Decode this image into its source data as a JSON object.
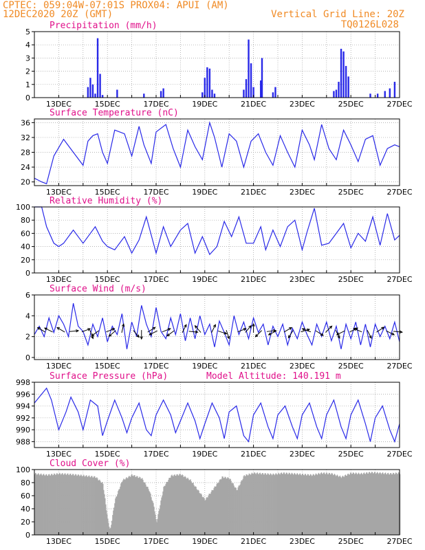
{
  "header": {
    "line1_left": "CPTEC:   059:04W-07:01S   PROX04: APUI (AM)",
    "line2_left": "12DEC2020 20Z (GMT)",
    "line1_right": "Vertical Grid Line: 20Z",
    "line2_right": "TQ0126L028"
  },
  "colors": {
    "header": "#f08a24",
    "panel_title": "#e0108a",
    "series": "#2828e8",
    "cloud": "#a6a6a6",
    "grid": "#9a9a9a"
  },
  "chart_data": [
    {
      "type": "bar",
      "title": "Precipitation (mm/h)",
      "ylim": [
        0,
        5
      ],
      "yticks": [
        0,
        1,
        2,
        3,
        4,
        5
      ],
      "xlim": [
        12.0,
        27.0
      ],
      "xticks": [
        "13DEC",
        "15DEC",
        "17DEC",
        "19DEC",
        "21DEC",
        "23DEC",
        "25DEC",
        "27DEC"
      ],
      "x": [
        14.2,
        14.3,
        14.4,
        14.5,
        14.6,
        14.7,
        14.8,
        15.4,
        16.5,
        17.2,
        17.3,
        18.9,
        19.0,
        19.1,
        19.2,
        19.3,
        19.4,
        20.6,
        20.7,
        20.8,
        20.9,
        21.0,
        21.3,
        21.35,
        21.8,
        21.9,
        24.3,
        24.4,
        24.5,
        24.6,
        24.7,
        24.8,
        24.9,
        25.8,
        26.1,
        26.4,
        26.6,
        26.8
      ],
      "values": [
        0.8,
        1.5,
        1.0,
        0.3,
        4.5,
        1.8,
        0.2,
        0.6,
        0.3,
        0.5,
        0.7,
        0.4,
        1.5,
        2.3,
        2.2,
        0.6,
        0.3,
        0.6,
        1.4,
        4.4,
        2.6,
        0.8,
        1.3,
        3.0,
        0.4,
        0.8,
        0.5,
        0.6,
        1.2,
        3.7,
        3.5,
        2.4,
        1.6,
        0.3,
        0.3,
        0.5,
        0.7,
        1.2
      ]
    },
    {
      "type": "line",
      "title": "Surface Temperature (nC)",
      "ylim": [
        19,
        37
      ],
      "yticks": [
        20,
        24,
        28,
        32,
        36
      ],
      "xlim": [
        12.0,
        27.0
      ],
      "xticks": [
        "13DEC",
        "15DEC",
        "17DEC",
        "19DEC",
        "21DEC",
        "23DEC",
        "25DEC",
        "27DEC"
      ],
      "x": [
        12.0,
        12.3,
        12.5,
        12.6,
        12.8,
        13.2,
        13.6,
        14.0,
        14.2,
        14.4,
        14.6,
        14.8,
        15.0,
        15.3,
        15.7,
        16.0,
        16.3,
        16.5,
        16.8,
        17.0,
        17.4,
        17.7,
        18.0,
        18.3,
        18.6,
        18.9,
        19.2,
        19.4,
        19.7,
        20.0,
        20.3,
        20.6,
        20.9,
        21.2,
        21.5,
        21.8,
        22.1,
        22.4,
        22.7,
        23.0,
        23.3,
        23.5,
        23.8,
        24.1,
        24.4,
        24.7,
        25.0,
        25.3,
        25.6,
        25.9,
        26.2,
        26.5,
        26.8,
        27.0
      ],
      "values": [
        21.0,
        20.0,
        19.5,
        22.0,
        27.0,
        31.5,
        28.0,
        24.5,
        31.0,
        32.5,
        33.0,
        28.0,
        25.0,
        34.0,
        33.0,
        27.0,
        35.0,
        30.0,
        25.0,
        33.5,
        35.5,
        29.0,
        24.0,
        34.0,
        29.5,
        26.0,
        36.0,
        32.0,
        24.0,
        33.0,
        31.0,
        24.0,
        31.0,
        33.0,
        28.0,
        24.5,
        32.5,
        28.0,
        24.0,
        34.0,
        30.0,
        26.0,
        35.5,
        29.0,
        26.0,
        34.0,
        30.0,
        25.5,
        31.5,
        32.5,
        24.5,
        29.0,
        30.0,
        29.5
      ]
    },
    {
      "type": "line",
      "title": "Relative Humidity (%)",
      "ylim": [
        0,
        100
      ],
      "yticks": [
        0,
        20,
        40,
        60,
        80,
        100
      ],
      "xlim": [
        12.0,
        27.0
      ],
      "xticks": [
        "13DEC",
        "15DEC",
        "17DEC",
        "19DEC",
        "21DEC",
        "23DEC",
        "25DEC",
        "27DEC"
      ],
      "x": [
        12.0,
        12.3,
        12.5,
        12.8,
        13.0,
        13.2,
        13.6,
        14.0,
        14.2,
        14.5,
        14.8,
        15.0,
        15.3,
        15.7,
        16.0,
        16.3,
        16.6,
        17.0,
        17.3,
        17.6,
        18.0,
        18.3,
        18.6,
        18.9,
        19.2,
        19.5,
        19.8,
        20.1,
        20.4,
        20.7,
        21.0,
        21.3,
        21.5,
        21.8,
        22.1,
        22.4,
        22.7,
        23.0,
        23.2,
        23.5,
        23.8,
        24.1,
        24.4,
        24.7,
        25.0,
        25.3,
        25.6,
        25.9,
        26.2,
        26.5,
        26.8,
        27.0
      ],
      "values": [
        100,
        100,
        70,
        45,
        40,
        45,
        65,
        45,
        55,
        70,
        48,
        40,
        35,
        55,
        30,
        50,
        85,
        30,
        70,
        40,
        65,
        75,
        30,
        55,
        28,
        40,
        78,
        55,
        85,
        45,
        45,
        70,
        35,
        65,
        40,
        70,
        80,
        35,
        62,
        98,
        42,
        45,
        60,
        75,
        38,
        60,
        48,
        85,
        42,
        90,
        50,
        57
      ]
    },
    {
      "type": "line",
      "title": "Surface Wind (m/s)",
      "ylim": [
        -0.2,
        6
      ],
      "yticks": [
        0,
        2,
        4,
        6
      ],
      "xlim": [
        12.0,
        27.0
      ],
      "xticks": [
        "13DEC",
        "15DEC",
        "17DEC",
        "19DEC",
        "21DEC",
        "23DEC",
        "25DEC",
        "27DEC"
      ],
      "x": [
        12.0,
        12.2,
        12.4,
        12.6,
        12.8,
        13.0,
        13.2,
        13.4,
        13.6,
        13.8,
        14.0,
        14.2,
        14.4,
        14.6,
        14.8,
        15.0,
        15.2,
        15.4,
        15.6,
        15.8,
        16.0,
        16.2,
        16.4,
        16.6,
        16.8,
        17.0,
        17.2,
        17.4,
        17.6,
        17.8,
        18.0,
        18.2,
        18.4,
        18.6,
        18.8,
        19.0,
        19.2,
        19.4,
        19.6,
        19.8,
        20.0,
        20.2,
        20.4,
        20.6,
        20.8,
        21.0,
        21.2,
        21.4,
        21.6,
        21.8,
        22.0,
        22.2,
        22.4,
        22.6,
        22.8,
        23.0,
        23.2,
        23.4,
        23.6,
        23.8,
        24.0,
        24.2,
        24.4,
        24.6,
        24.8,
        25.0,
        25.2,
        25.4,
        25.6,
        25.8,
        26.0,
        26.2,
        26.4,
        26.6,
        26.8,
        27.0
      ],
      "values": [
        2.2,
        3.0,
        2.0,
        3.8,
        2.4,
        4.0,
        3.2,
        2.0,
        5.2,
        3.0,
        2.5,
        1.2,
        3.2,
        2.0,
        3.8,
        1.5,
        3.0,
        2.2,
        4.2,
        0.8,
        3.4,
        2.0,
        5.0,
        3.2,
        2.0,
        4.8,
        2.5,
        1.8,
        3.8,
        2.2,
        4.2,
        1.6,
        3.8,
        1.8,
        4.0,
        2.2,
        3.2,
        1.0,
        3.5,
        2.4,
        1.2,
        4.0,
        2.2,
        3.4,
        1.8,
        3.8,
        2.4,
        3.2,
        1.2,
        3.0,
        2.0,
        3.2,
        1.2,
        2.8,
        1.8,
        3.4,
        2.2,
        1.2,
        3.2,
        2.0,
        3.4,
        1.6,
        3.0,
        0.8,
        3.2,
        1.8,
        3.4,
        1.2,
        3.2,
        1.0,
        3.2,
        2.0,
        3.0,
        1.8,
        3.4,
        1.5
      ]
    },
    {
      "type": "line",
      "title": "Surface Pressure (hPa)",
      "annotation": "Model Altitude: 140.191 m",
      "ylim": [
        987,
        998
      ],
      "yticks": [
        988,
        990,
        992,
        994,
        996,
        998
      ],
      "xlim": [
        12.0,
        27.0
      ],
      "xticks": [
        "13DEC",
        "15DEC",
        "17DEC",
        "19DEC",
        "21DEC",
        "23DEC",
        "25DEC",
        "27DEC"
      ],
      "x": [
        12.0,
        12.3,
        12.5,
        12.7,
        13.0,
        13.3,
        13.5,
        13.8,
        14.0,
        14.3,
        14.6,
        14.8,
        15.0,
        15.3,
        15.6,
        15.8,
        16.0,
        16.3,
        16.6,
        16.8,
        17.0,
        17.3,
        17.6,
        17.8,
        18.0,
        18.3,
        18.6,
        18.8,
        19.0,
        19.3,
        19.6,
        19.8,
        20.0,
        20.3,
        20.6,
        20.8,
        21.0,
        21.3,
        21.6,
        21.8,
        22.0,
        22.3,
        22.6,
        22.8,
        23.0,
        23.3,
        23.6,
        23.8,
        24.0,
        24.3,
        24.6,
        24.8,
        25.0,
        25.3,
        25.6,
        25.8,
        26.0,
        26.3,
        26.6,
        26.8,
        27.0
      ],
      "values": [
        994.5,
        996.0,
        997.0,
        995.0,
        990.0,
        993.0,
        995.5,
        993.0,
        990.0,
        995.0,
        994.0,
        989.0,
        991.5,
        995.0,
        992.0,
        989.5,
        992.0,
        994.5,
        990.0,
        989.0,
        992.5,
        995.0,
        992.5,
        989.5,
        991.5,
        994.5,
        991.5,
        988.5,
        991.0,
        994.5,
        992.0,
        988.5,
        993.0,
        994.0,
        989.0,
        988.0,
        992.5,
        994.5,
        990.5,
        988.5,
        992.5,
        994.0,
        990.5,
        988.5,
        992.5,
        994.5,
        990.5,
        988.5,
        992.5,
        995.0,
        990.5,
        988.5,
        992.5,
        995.0,
        991.0,
        988.0,
        992.0,
        994.0,
        990.0,
        988.0,
        991.0
      ]
    },
    {
      "type": "bar",
      "title": "Cloud Cover (%)",
      "ylim": [
        0,
        100
      ],
      "yticks": [
        0,
        20,
        40,
        60,
        80,
        100
      ],
      "xlim": [
        12.0,
        27.0
      ],
      "xticks": [
        "13DEC",
        "15DEC",
        "17DEC",
        "19DEC",
        "21DEC",
        "23DEC",
        "25DEC",
        "27DEC"
      ],
      "x": [
        12.0,
        12.5,
        13.0,
        13.5,
        14.0,
        14.5,
        14.8,
        15.0,
        15.1,
        15.3,
        15.6,
        16.0,
        16.4,
        16.7,
        16.9,
        17.0,
        17.3,
        17.6,
        18.0,
        18.4,
        18.8,
        19.0,
        19.3,
        19.7,
        20.0,
        20.3,
        20.6,
        21.0,
        21.4,
        21.8,
        22.2,
        22.6,
        23.0,
        23.4,
        23.8,
        24.2,
        24.6,
        25.0,
        25.4,
        25.8,
        26.2,
        26.6,
        27.0
      ],
      "values": [
        95,
        93,
        95,
        94,
        92,
        90,
        80,
        25,
        8,
        55,
        85,
        93,
        88,
        70,
        45,
        20,
        75,
        92,
        94,
        85,
        65,
        55,
        70,
        90,
        88,
        70,
        92,
        96,
        95,
        94,
        96,
        95,
        94,
        93,
        96,
        95,
        90,
        96,
        95,
        97,
        96,
        95,
        96
      ]
    }
  ],
  "wind_vectors": {
    "x": [
      12.4,
      12.7,
      13.2,
      13.5,
      14.0,
      14.3,
      14.6,
      15.0,
      15.3,
      15.6,
      16.1,
      16.4,
      16.7,
      17.0,
      17.3,
      17.7,
      18.1,
      18.4,
      18.8,
      19.3,
      19.6,
      19.9,
      20.4,
      20.7,
      21.0,
      21.3,
      21.6,
      21.9,
      22.3,
      22.6,
      23.0,
      23.3,
      23.6,
      24.0,
      24.4,
      24.7,
      25.0,
      25.4,
      25.7,
      26.1,
      26.5,
      26.8
    ],
    "u": [
      -1,
      -1,
      -1,
      1,
      0.8,
      0.3,
      -0.8,
      0.5,
      -0.7,
      0.2,
      0.5,
      0,
      0.8,
      -0.6,
      1,
      -0.8,
      0.4,
      1,
      -0.6,
      0.4,
      0.9,
      0.3,
      1,
      0.6,
      0,
      -0.6,
      0.8,
      -1,
      1,
      -0.5,
      0.7,
      -0.8,
      0.8,
      0.6,
      0.4,
      -0.8,
      0.8,
      -0.7,
      0.4,
      0.6,
      0.8,
      1
    ],
    "v": [
      0.6,
      0.5,
      0.6,
      0.1,
      0.3,
      -0.8,
      -0.6,
      0.2,
      -0.6,
      0.9,
      -0.6,
      -1,
      0.5,
      -0.3,
      0.4,
      -0.6,
      0.8,
      -0.1,
      0.7,
      0.8,
      -0.3,
      -0.9,
      0.4,
      0.7,
      1,
      -0.6,
      0.1,
      -0.5,
      0.6,
      -0.8,
      0.2,
      0.3,
      -0.5,
      0.6,
      -0.8,
      -0.4,
      0.4,
      0.3,
      -0.8,
      0.4,
      -0.4,
      -0.1
    ]
  }
}
